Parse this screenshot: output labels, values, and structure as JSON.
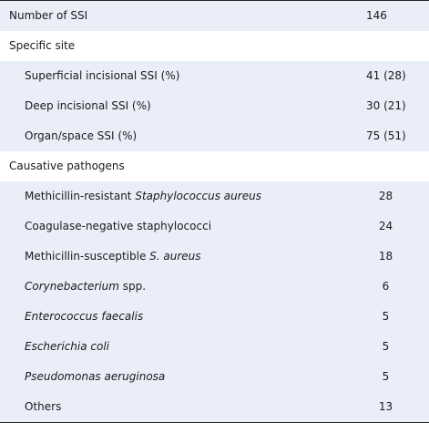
{
  "table": {
    "rows": [
      {
        "label_parts": [
          "Number of SSI"
        ],
        "value": "146"
      },
      {
        "label_parts": [
          "Specific site"
        ],
        "value": ""
      },
      {
        "label_parts": [
          "Superficial incisional SSI (%)"
        ],
        "value": "41 (28)"
      },
      {
        "label_parts": [
          "Deep incisional SSI (%)"
        ],
        "value": "30 (21)"
      },
      {
        "label_parts": [
          "Organ/space SSI (%)"
        ],
        "value": "75 (51)"
      },
      {
        "label_parts": [
          "Causative pathogens"
        ],
        "value": ""
      },
      {
        "label_parts": [
          "Methicillin-resistant ",
          "Staphylococcus aureus"
        ],
        "value": "28"
      },
      {
        "label_parts": [
          "Coagulase-negative staphylococci"
        ],
        "value": "24"
      },
      {
        "label_parts": [
          "Methicillin-susceptible ",
          "S. aureus"
        ],
        "value": "18"
      },
      {
        "label_parts": [
          "Corynebacterium",
          " spp."
        ],
        "value": "6"
      },
      {
        "label_parts": [
          "Enterococcus faecalis"
        ],
        "value": "5"
      },
      {
        "label_parts": [
          "Escherichia coli"
        ],
        "value": "5"
      },
      {
        "label_parts": [
          "Pseudomonas aeruginosa"
        ],
        "value": "5"
      },
      {
        "label_parts": [
          "Others"
        ],
        "value": "13"
      }
    ]
  },
  "colors": {
    "band": "#e9eef8",
    "rule": "#222222"
  }
}
